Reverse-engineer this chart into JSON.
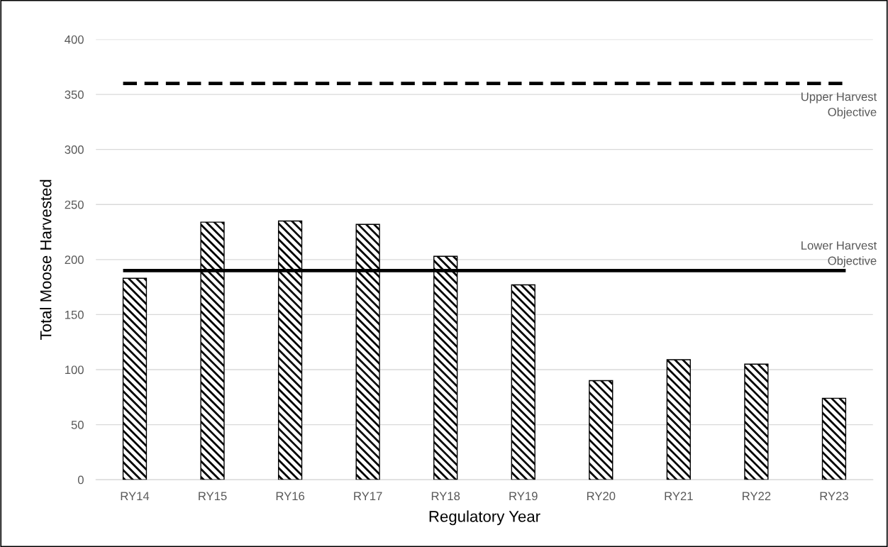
{
  "chart_data": {
    "type": "bar",
    "xlabel": "Regulatory Year",
    "ylabel": "Total Moose Harvested",
    "categories": [
      "RY14",
      "RY15",
      "RY16",
      "RY17",
      "RY18",
      "RY19",
      "RY20",
      "RY21",
      "RY22",
      "RY23"
    ],
    "values": [
      183,
      234,
      235,
      232,
      203,
      177,
      90,
      109,
      105,
      74
    ],
    "color": "#000000",
    "ylim": [
      0,
      400
    ],
    "yticks": [
      0,
      50,
      100,
      150,
      200,
      250,
      300,
      350,
      400
    ],
    "grid": "y",
    "ref_lines": [
      {
        "axis": "y",
        "value": 360,
        "label": "Upper Harvest Objective",
        "line_style": "dashed",
        "color": "#000000"
      },
      {
        "axis": "y",
        "value": 190,
        "label": "Lower Harvest Objective",
        "line_style": "solid",
        "color": "#000000"
      }
    ]
  }
}
